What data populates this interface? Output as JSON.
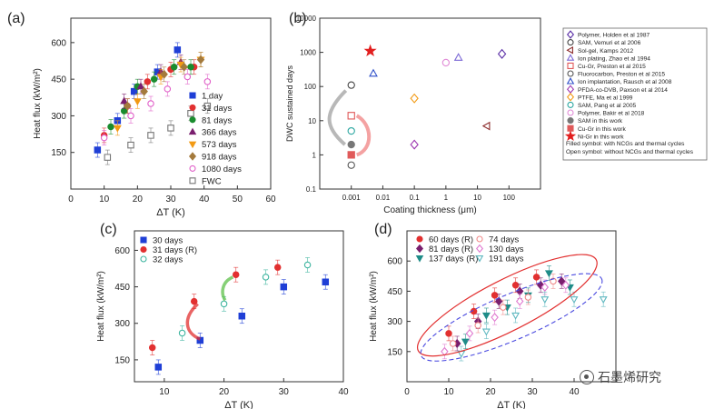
{
  "chart_data": [
    {
      "panel": "(a)",
      "type": "scatter",
      "xlabel": "ΔT (K)",
      "ylabel": "Heat flux (kW/m²)",
      "xlim": [
        0,
        60
      ],
      "ylim": [
        0,
        700
      ],
      "xticks": [
        0,
        10,
        20,
        30,
        40,
        50,
        60
      ],
      "yticks": [
        150,
        300,
        450,
        600
      ],
      "legend": "right",
      "series": [
        {
          "name": "1 day",
          "color": "#1f3fd6",
          "marker": "square",
          "filled": true,
          "x": [
            8,
            14,
            19,
            26,
            32
          ],
          "y": [
            160,
            280,
            400,
            480,
            570
          ]
        },
        {
          "name": "31 days",
          "color": "#e23030",
          "marker": "circle",
          "filled": true,
          "x": [
            10,
            17,
            23,
            30,
            37
          ],
          "y": [
            220,
            340,
            440,
            490,
            500
          ]
        },
        {
          "name": "81 days",
          "color": "#1a8c2e",
          "marker": "circle",
          "filled": true,
          "x": [
            12,
            16,
            20,
            25,
            31,
            36
          ],
          "y": [
            255,
            320,
            420,
            450,
            500,
            500
          ]
        },
        {
          "name": "366 days",
          "color": "#7a1f6e",
          "marker": "triangle",
          "filled": true,
          "x": [
            16,
            21,
            27,
            33
          ],
          "y": [
            360,
            420,
            480,
            520
          ]
        },
        {
          "name": "573 days",
          "color": "#f29a14",
          "marker": "triangle-down",
          "filled": true,
          "x": [
            14,
            20,
            27,
            33,
            39
          ],
          "y": [
            250,
            360,
            460,
            510,
            530
          ]
        },
        {
          "name": "918 days",
          "color": "#a47a3c",
          "marker": "diamond",
          "filled": true,
          "x": [
            17,
            22,
            28,
            34,
            39
          ],
          "y": [
            340,
            400,
            470,
            500,
            530
          ]
        },
        {
          "name": "1080 days",
          "color": "#e05fc8",
          "marker": "circle",
          "filled": false,
          "x": [
            10,
            18,
            24,
            29,
            35,
            41
          ],
          "y": [
            210,
            300,
            350,
            410,
            460,
            440
          ]
        },
        {
          "name": "FWC",
          "color": "#777777",
          "marker": "square",
          "filled": false,
          "x": [
            11,
            18,
            24,
            30,
            36,
            41
          ],
          "y": [
            130,
            180,
            220,
            250,
            310,
            340
          ]
        }
      ]
    },
    {
      "panel": "(b)",
      "type": "scatter",
      "xlabel": "Coating thickness (μm)",
      "ylabel": "DWC sustained days",
      "xscale": "log",
      "yscale": "log",
      "xlim": [
        0.0001,
        1000
      ],
      "ylim": [
        0.1,
        10000
      ],
      "xtick_labels": [
        "0.001",
        "0.01",
        "0.1",
        "1",
        "10",
        "100"
      ],
      "ytick_labels": [
        "0.1",
        "1",
        "10",
        "100",
        "1000",
        "10000"
      ],
      "legend": "outside-right",
      "series": [
        {
          "name": "Polymer, Holden et al 1987",
          "color": "#5a2ea6",
          "marker": "diamond",
          "filled": false,
          "x": [
            60
          ],
          "y": [
            900
          ]
        },
        {
          "name": "SAM, Vemuri et al 2006",
          "color": "#444444",
          "marker": "circle",
          "filled": false,
          "x": [
            0.001
          ],
          "y": [
            110
          ]
        },
        {
          "name": "Sol-gel, Kamps 2012",
          "color": "#8b2a2a",
          "marker": "triangle-left",
          "filled": false,
          "x": [
            20
          ],
          "y": [
            7
          ]
        },
        {
          "name": "Ion plating, Zhao et al 1994",
          "color": "#7d6ad6",
          "marker": "triangle",
          "filled": false,
          "x": [
            2.5
          ],
          "y": [
            700
          ]
        },
        {
          "name": "Cu-Gr, Preston et al 2015",
          "color": "#e05a5a",
          "marker": "square",
          "filled": false,
          "x": [
            0.001
          ],
          "y": [
            14
          ]
        },
        {
          "name": "Fluorocarbon, Preston et al 2015",
          "color": "#555555",
          "marker": "circle",
          "filled": false,
          "x": [
            0.001
          ],
          "y": [
            0.5
          ]
        },
        {
          "name": "Ion implantation, Rausch et al 2008",
          "color": "#2e4fc9",
          "marker": "triangle",
          "filled": false,
          "x": [
            0.005
          ],
          "y": [
            240
          ]
        },
        {
          "name": "PFDA-co-DVB, Paxson et al 2014",
          "color": "#9c35b0",
          "marker": "diamond",
          "filled": false,
          "x": [
            0.1
          ],
          "y": [
            2
          ]
        },
        {
          "name": "PTFE, Ma et al 1999",
          "color": "#f29a14",
          "marker": "diamond",
          "filled": false,
          "x": [
            0.1
          ],
          "y": [
            45
          ]
        },
        {
          "name": "SAM, Pang et al 2005",
          "color": "#2aa6a0",
          "marker": "circle",
          "filled": false,
          "x": [
            0.001
          ],
          "y": [
            5
          ]
        },
        {
          "name": "Polymer, Bakir et al 2018",
          "color": "#e08ad6",
          "marker": "circle",
          "filled": false,
          "x": [
            1
          ],
          "y": [
            500
          ]
        },
        {
          "name": "SAM in this work",
          "color": "#777777",
          "marker": "circle",
          "filled": true,
          "x": [
            0.001
          ],
          "y": [
            2
          ]
        },
        {
          "name": "Cu-Gr in this work",
          "color": "#e05a5a",
          "marker": "square",
          "filled": true,
          "x": [
            0.001
          ],
          "y": [
            1
          ]
        },
        {
          "name": "Ni-Gr in this work",
          "color": "#e21f1f",
          "marker": "star",
          "filled": true,
          "x": [
            0.004
          ],
          "y": [
            1100
          ]
        }
      ],
      "legend_notes": [
        "Filled symbol: with NCGs and thermal cycles",
        "Open symbol: without NCGs and thermal cycles"
      ]
    },
    {
      "panel": "(c)",
      "type": "scatter",
      "xlabel": "ΔT (K)",
      "ylabel": "Heat flux (kW/m²)",
      "xlim": [
        5,
        40
      ],
      "ylim": [
        60,
        680
      ],
      "xticks": [
        10,
        20,
        30,
        40
      ],
      "yticks": [
        150,
        300,
        450,
        600
      ],
      "legend": "top-left",
      "series": [
        {
          "name": "30 days",
          "color": "#1f3fd6",
          "marker": "square",
          "filled": true,
          "x": [
            9,
            16,
            23,
            30,
            37
          ],
          "y": [
            120,
            230,
            330,
            450,
            470
          ]
        },
        {
          "name": "31 days (R)",
          "color": "#e23030",
          "marker": "circle",
          "filled": true,
          "x": [
            8,
            15,
            22,
            29
          ],
          "y": [
            200,
            390,
            500,
            530
          ]
        },
        {
          "name": "32 days",
          "color": "#3fb5a0",
          "marker": "circle",
          "filled": false,
          "x": [
            13,
            20,
            27,
            34
          ],
          "y": [
            260,
            380,
            490,
            540
          ]
        }
      ]
    },
    {
      "panel": "(d)",
      "type": "scatter",
      "xlabel": "ΔT (K)",
      "ylabel": "Heat flux (kW/m²)",
      "xlim": [
        0,
        50
      ],
      "ylim": [
        0,
        750
      ],
      "xticks": [
        0,
        10,
        20,
        30,
        40
      ],
      "yticks": [
        150,
        300,
        450,
        600
      ],
      "legend": "top",
      "series": [
        {
          "name": "60 days (R)",
          "color": "#e23030",
          "marker": "circle",
          "filled": true,
          "x": [
            10,
            16,
            21,
            26,
            31
          ],
          "y": [
            240,
            350,
            430,
            480,
            520
          ]
        },
        {
          "name": "81 days (R)",
          "color": "#7a1f6e",
          "marker": "diamond",
          "filled": true,
          "x": [
            12,
            17,
            22,
            27,
            32,
            37
          ],
          "y": [
            190,
            300,
            400,
            450,
            480,
            500
          ]
        },
        {
          "name": "137 days (R)",
          "color": "#1f8c88",
          "marker": "triangle-down",
          "filled": true,
          "x": [
            14,
            19,
            24,
            29,
            34,
            39
          ],
          "y": [
            200,
            330,
            370,
            430,
            540,
            470
          ]
        },
        {
          "name": "74 days",
          "color": "#f08a8a",
          "marker": "circle",
          "filled": false,
          "x": [
            11,
            17,
            23,
            29,
            35
          ],
          "y": [
            190,
            280,
            370,
            420,
            500
          ]
        },
        {
          "name": "130 days",
          "color": "#e07ad0",
          "marker": "diamond",
          "filled": false,
          "x": [
            9,
            15,
            21,
            27,
            33,
            38
          ],
          "y": [
            150,
            240,
            320,
            400,
            470,
            480
          ]
        },
        {
          "name": "191 days",
          "color": "#5fb8c0",
          "marker": "triangle-down",
          "filled": false,
          "x": [
            13,
            19,
            26,
            33,
            40,
            47
          ],
          "y": [
            140,
            250,
            330,
            410,
            410,
            410
          ]
        }
      ]
    }
  ],
  "watermark": {
    "text": "石墨烯研究"
  }
}
